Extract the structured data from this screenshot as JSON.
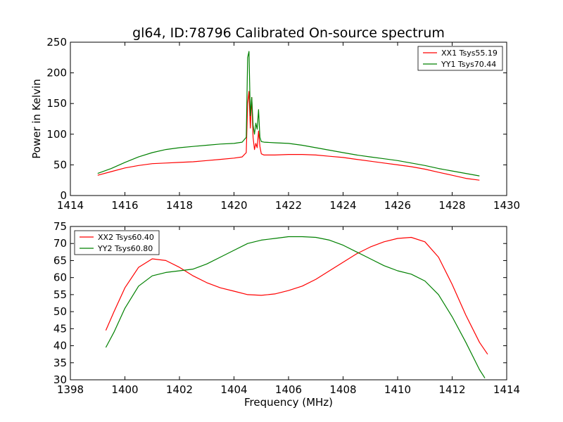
{
  "chart_data": [
    {
      "type": "line",
      "title": "gl64, ID:78796 Calibrated On-source spectrum",
      "xlabel": "",
      "ylabel": "Power in Kelvin",
      "xlim": [
        1414,
        1430
      ],
      "ylim": [
        0,
        250
      ],
      "xticks": [
        1414,
        1416,
        1418,
        1420,
        1422,
        1424,
        1426,
        1428,
        1430
      ],
      "yticks": [
        0,
        50,
        100,
        150,
        200,
        250
      ],
      "legend_position": "top-right",
      "grid": false,
      "series": [
        {
          "name": "XX1 Tsys55.19",
          "color": "#ff0000",
          "x": [
            1415.0,
            1415.5,
            1416.0,
            1416.5,
            1417.0,
            1417.5,
            1418.0,
            1418.5,
            1419.0,
            1419.5,
            1420.0,
            1420.3,
            1420.45,
            1420.5,
            1420.55,
            1420.6,
            1420.65,
            1420.7,
            1420.75,
            1420.8,
            1420.85,
            1420.9,
            1420.95,
            1421.0,
            1421.1,
            1421.5,
            1422.0,
            1422.5,
            1423.0,
            1423.5,
            1424.0,
            1424.5,
            1425.0,
            1425.5,
            1426.0,
            1426.5,
            1427.0,
            1427.5,
            1428.0,
            1428.5,
            1429.0
          ],
          "values": [
            33,
            39,
            45,
            49,
            52,
            53,
            54,
            55,
            57,
            59,
            61,
            63,
            70,
            150,
            170,
            110,
            160,
            95,
            75,
            85,
            78,
            105,
            80,
            68,
            66,
            66,
            67,
            67,
            66,
            64,
            62,
            59,
            56,
            53,
            50,
            47,
            43,
            38,
            33,
            28,
            25
          ]
        },
        {
          "name": "YY1 Tsys70.44",
          "color": "#008000",
          "x": [
            1415.0,
            1415.5,
            1416.0,
            1416.5,
            1417.0,
            1417.5,
            1418.0,
            1418.5,
            1419.0,
            1419.5,
            1420.0,
            1420.3,
            1420.45,
            1420.5,
            1420.55,
            1420.6,
            1420.65,
            1420.7,
            1420.75,
            1420.8,
            1420.85,
            1420.9,
            1420.95,
            1421.0,
            1421.1,
            1421.5,
            1422.0,
            1422.5,
            1423.0,
            1423.5,
            1424.0,
            1424.5,
            1425.0,
            1425.5,
            1426.0,
            1426.5,
            1427.0,
            1427.5,
            1428.0,
            1428.5,
            1429.0
          ],
          "values": [
            36,
            44,
            54,
            63,
            70,
            75,
            78,
            80,
            82,
            84,
            85,
            87,
            95,
            225,
            235,
            130,
            160,
            115,
            100,
            118,
            108,
            140,
            95,
            88,
            87,
            86,
            85,
            82,
            78,
            74,
            70,
            66,
            63,
            60,
            57,
            53,
            49,
            44,
            40,
            36,
            32
          ]
        }
      ]
    },
    {
      "type": "line",
      "title": "",
      "xlabel": "Frequency (MHz)",
      "ylabel": "",
      "xlim": [
        1398,
        1414
      ],
      "ylim": [
        30,
        75
      ],
      "xticks": [
        1398,
        1400,
        1402,
        1404,
        1406,
        1408,
        1410,
        1412,
        1414
      ],
      "yticks": [
        30,
        35,
        40,
        45,
        50,
        55,
        60,
        65,
        70,
        75
      ],
      "legend_position": "top-left",
      "grid": false,
      "series": [
        {
          "name": "XX2 Tsys60.40",
          "color": "#ff0000",
          "x": [
            1399.3,
            1399.6,
            1400.0,
            1400.5,
            1401.0,
            1401.5,
            1402.0,
            1402.5,
            1403.0,
            1403.5,
            1404.0,
            1404.5,
            1405.0,
            1405.5,
            1406.0,
            1406.5,
            1407.0,
            1407.5,
            1408.0,
            1408.5,
            1409.0,
            1409.5,
            1410.0,
            1410.5,
            1411.0,
            1411.5,
            1412.0,
            1412.5,
            1413.0,
            1413.3
          ],
          "values": [
            44.5,
            50,
            57,
            63,
            65.5,
            65,
            63,
            60.5,
            58.5,
            57,
            56,
            55,
            54.8,
            55.2,
            56.2,
            57.5,
            59.5,
            62,
            64.5,
            67,
            69,
            70.5,
            71.5,
            71.8,
            70.5,
            66,
            58,
            49,
            41,
            37.5
          ]
        },
        {
          "name": "YY2 Tsys60.80",
          "color": "#008000",
          "x": [
            1399.3,
            1399.6,
            1400.0,
            1400.5,
            1401.0,
            1401.5,
            1402.0,
            1402.5,
            1403.0,
            1403.5,
            1404.0,
            1404.5,
            1405.0,
            1405.5,
            1406.0,
            1406.5,
            1407.0,
            1407.5,
            1408.0,
            1408.5,
            1409.0,
            1409.5,
            1410.0,
            1410.5,
            1411.0,
            1411.5,
            1412.0,
            1412.5,
            1413.0,
            1413.2
          ],
          "values": [
            39.5,
            44,
            51,
            57.5,
            60.5,
            61.5,
            62,
            62.5,
            64,
            66,
            68,
            70,
            71,
            71.5,
            72,
            72,
            71.8,
            71,
            69.5,
            67.5,
            65.5,
            63.5,
            62,
            61,
            59,
            55,
            48.5,
            41,
            33,
            30.5
          ]
        }
      ]
    }
  ]
}
